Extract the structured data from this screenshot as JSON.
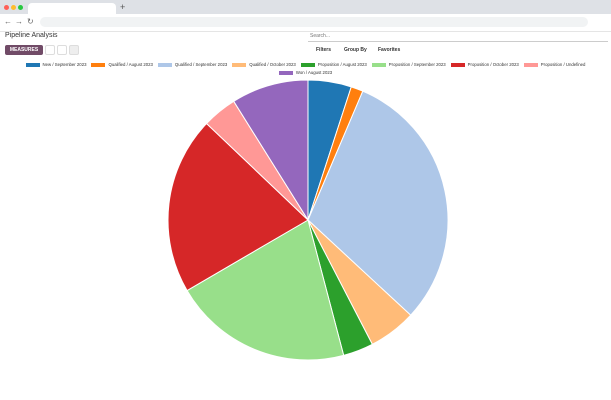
{
  "page": {
    "title": "Pipeline Analysis",
    "search_placeholder": "Search...",
    "measures": "MEASURES",
    "filters": "Filters",
    "group_by": "Group By",
    "favorites": "Favorites"
  },
  "chart_data": {
    "type": "pie",
    "series": [
      {
        "name": "New / September 2023",
        "color": "#1f77b4",
        "values": [
          5
        ]
      },
      {
        "name": "Qualified / August 2023",
        "color": "#ff7f0e",
        "values": [
          1.4
        ]
      },
      {
        "name": "Qualified / September 2023",
        "color": "#aec7e8",
        "values": [
          30.5
        ]
      },
      {
        "name": "Qualified / October 2023",
        "color": "#ffbb78",
        "values": [
          5.5
        ]
      },
      {
        "name": "Proposition / August 2023",
        "color": "#2ca02c",
        "values": [
          3.5
        ]
      },
      {
        "name": "Proposition / September 2023",
        "color": "#98df8a",
        "values": [
          20.7
        ]
      },
      {
        "name": "Proposition / October 2023",
        "color": "#d62728",
        "values": [
          20.5
        ]
      },
      {
        "name": "Proposition / Undefined",
        "color": "#ff9896",
        "values": [
          4
        ]
      },
      {
        "name": "Won / August 2023",
        "color": "#9467bd",
        "values": [
          8.9
        ]
      }
    ]
  }
}
